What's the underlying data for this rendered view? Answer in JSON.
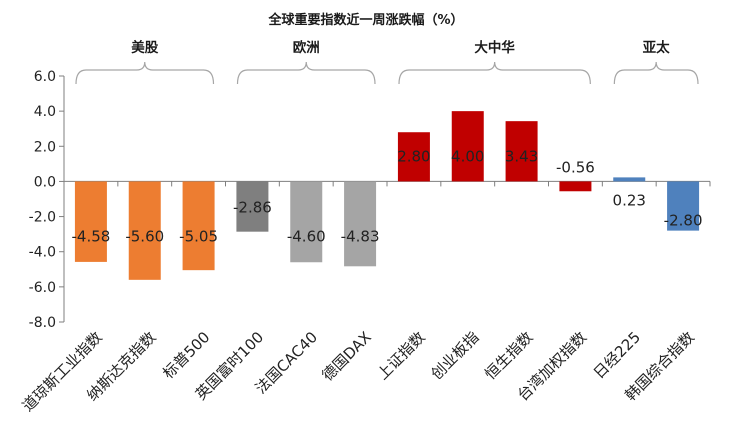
{
  "chart_data": {
    "type": "bar",
    "title": "全球重要指数近一周涨跌幅（%）",
    "xlabel": "",
    "ylabel": "",
    "ylim": [
      -8,
      6
    ],
    "yticks": [
      "6.0",
      "4.0",
      "2.0",
      "0.0",
      "-2.0",
      "-4.0",
      "-6.0",
      "-8.0"
    ],
    "ytick_values": [
      6,
      4,
      2,
      0,
      -2,
      -4,
      -6,
      -8
    ],
    "grid": false,
    "categories": [
      "道琼斯工业指数",
      "纳斯达克指数",
      "标普500",
      "英国富时100",
      "法国CAC40",
      "德国DAX",
      "上证指数",
      "创业板指",
      "恒生指数",
      "台湾加权指数",
      "日经225",
      "韩国综合指数"
    ],
    "values": [
      -4.58,
      -5.6,
      -5.05,
      -2.86,
      -4.6,
      -4.83,
      2.8,
      4.0,
      3.43,
      -0.56,
      0.23,
      -2.8
    ],
    "value_labels": [
      "-4.58",
      "-5.60",
      "-5.05",
      "-2.86",
      "-4.60",
      "-4.83",
      "2.80",
      "4.00",
      "3.43",
      "-0.56",
      "0.23",
      "-2.80"
    ],
    "bar_colors": [
      "#ed7d31",
      "#ed7d31",
      "#ed7d31",
      "#7f7f7f",
      "#a5a5a5",
      "#a5a5a5",
      "#c00000",
      "#c00000",
      "#c00000",
      "#c00000",
      "#4f81bd",
      "#4f81bd"
    ],
    "groups": [
      {
        "label": "美股",
        "start": 0,
        "end": 2
      },
      {
        "label": "欧洲",
        "start": 3,
        "end": 5
      },
      {
        "label": "大中华",
        "start": 6,
        "end": 9
      },
      {
        "label": "亚太",
        "start": 10,
        "end": 11
      }
    ]
  }
}
